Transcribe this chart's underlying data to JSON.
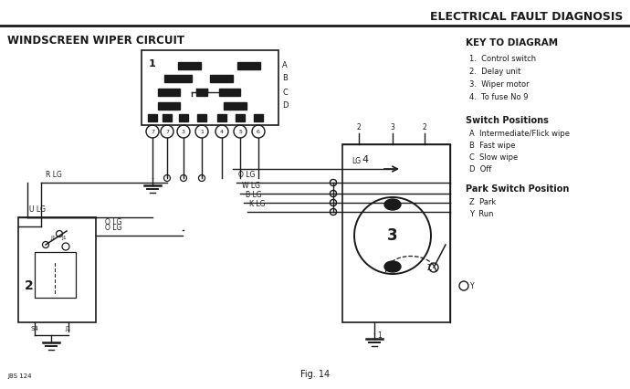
{
  "title": "ELECTRICAL FAULT DIAGNOSIS",
  "subtitle": "WINDSCREEN WIPER CIRCUIT",
  "fig_label": "Fig. 14",
  "fig_num": "JBS 124",
  "background_color": "#ffffff",
  "line_color": "#1a1a1a",
  "key_title": "KEY TO DIAGRAM",
  "key_items": [
    "1.  Control switch",
    "2.  Delay unit",
    "3.  Wiper motor",
    "4.  To fuse No 9"
  ],
  "switch_title": "Switch Positions",
  "switch_items": [
    "A  Intermediate/Flick wipe",
    "B  Fast wipe",
    "C  Slow wipe",
    "D  Off"
  ],
  "park_title": "Park Switch Position",
  "park_items": [
    "Z  Park",
    "Y  Run"
  ],
  "wire_labels": [
    "LG",
    "O LG",
    "W LG",
    "B LG",
    "K LG"
  ],
  "relay_label": "2",
  "motor_label": "3"
}
